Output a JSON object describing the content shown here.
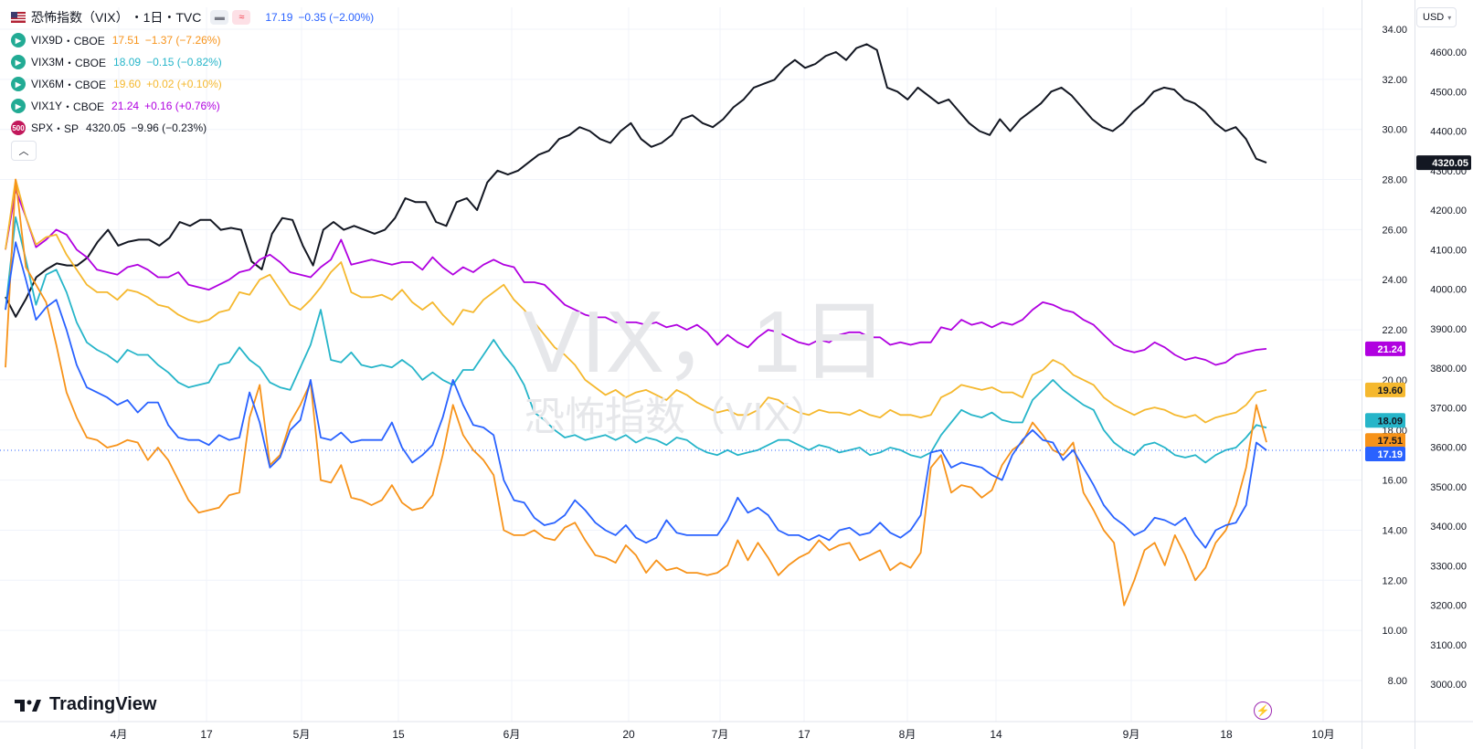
{
  "legend": {
    "main": {
      "title": "恐怖指数（VIX）",
      "interval": "・1日・TVC",
      "value": "17.19",
      "change": "−0.35 (−2.00%)",
      "color": "#2962ff"
    },
    "rows": [
      {
        "name": "VIX9D",
        "exchange": "・CBOE",
        "value": "17.51",
        "change": "−1.37 (−7.26%)",
        "color": "#f7931a",
        "icon": "play-icon"
      },
      {
        "name": "VIX3M",
        "exchange": "・CBOE",
        "value": "18.09",
        "change": "−0.15 (−0.82%)",
        "color": "#26b5c9",
        "icon": "play-icon"
      },
      {
        "name": "VIX6M",
        "exchange": "・CBOE",
        "value": "19.60",
        "change": "+0.02 (+0.10%)",
        "color": "#f5b82e",
        "icon": "play-icon"
      },
      {
        "name": "VIX1Y",
        "exchange": "・CBOE",
        "value": "21.24",
        "change": "+0.16 (+0.76%)",
        "color": "#b000e0",
        "icon": "play-icon"
      },
      {
        "name": "SPX",
        "exchange": "・SP",
        "value": "4320.05",
        "change": "−9.96 (−0.23%)",
        "color": "#131722",
        "icon": "500",
        "iconColor": "#c2185b"
      }
    ]
  },
  "currency": "USD",
  "watermark": {
    "big": "VIX，1日",
    "small": "恐怖指数（VIX）"
  },
  "brand": "TradingView",
  "chart_data": {
    "type": "line",
    "x_labels": [
      "4月",
      "17",
      "5月",
      "15",
      "6月",
      "20",
      "7月",
      "17",
      "8月",
      "14",
      "9月",
      "18",
      "10月"
    ],
    "left_axis": {
      "ticks": [
        "34.00",
        "32.00",
        "30.00",
        "28.00",
        "26.00",
        "24.00",
        "22.00",
        "20.00",
        "18.00",
        "16.00",
        "14.00",
        "12.00",
        "10.00",
        "8.00"
      ],
      "ylim": [
        8,
        34
      ]
    },
    "right_axis": {
      "ticks": [
        "4600.00",
        "4500.00",
        "4400.00",
        "4300.00",
        "4200.00",
        "4100.00",
        "4000.00",
        "3900.00",
        "3800.00",
        "3700.00",
        "3600.00",
        "3500.00",
        "3400.00",
        "3300.00",
        "3200.00",
        "3100.00",
        "3000.00"
      ],
      "ylim": [
        2975,
        4660
      ]
    },
    "series": [
      {
        "name": "VIX1Y",
        "axis": "left",
        "color": "#b000e0",
        "last_label": "21.24",
        "values": [
          25.2,
          27.6,
          26.5,
          25.3,
          25.6,
          26.0,
          25.8,
          25.2,
          24.9,
          24.4,
          24.3,
          24.2,
          24.5,
          24.6,
          24.4,
          24.1,
          24.1,
          24.3,
          23.8,
          23.7,
          23.6,
          23.8,
          24.0,
          24.3,
          24.4,
          24.8,
          25.0,
          24.7,
          24.3,
          24.2,
          24.1,
          24.5,
          24.8,
          25.6,
          24.6,
          24.7,
          24.8,
          24.7,
          24.6,
          24.7,
          24.7,
          24.4,
          24.9,
          24.5,
          24.2,
          24.5,
          24.3,
          24.6,
          24.8,
          24.6,
          24.5,
          23.9,
          23.9,
          23.8,
          23.4,
          23.0,
          22.8,
          22.6,
          22.5,
          22.5,
          22.3,
          22.3,
          22.3,
          22.2,
          22.3,
          22.1,
          22.2,
          22.0,
          22.2,
          21.9,
          21.4,
          21.8,
          21.5,
          21.3,
          21.7,
          22.0,
          21.9,
          21.7,
          21.5,
          21.4,
          21.6,
          21.5,
          21.8,
          21.9,
          21.9,
          21.7,
          21.7,
          21.4,
          21.5,
          21.4,
          21.5,
          21.5,
          22.1,
          22.0,
          22.4,
          22.2,
          22.3,
          22.1,
          22.3,
          22.2,
          22.4,
          22.8,
          23.1,
          23.0,
          22.8,
          22.7,
          22.4,
          22.2,
          21.8,
          21.4,
          21.2,
          21.1,
          21.2,
          21.5,
          21.3,
          21.0,
          20.8,
          20.9,
          20.8,
          20.6,
          20.7,
          21.0,
          21.1,
          21.2,
          21.24
        ]
      },
      {
        "name": "VIX6M",
        "axis": "left",
        "color": "#f5b82e",
        "last_label": "19.60",
        "values": [
          25.2,
          28.0,
          26.5,
          25.4,
          25.7,
          25.8,
          25.0,
          24.4,
          23.8,
          23.5,
          23.5,
          23.2,
          23.6,
          23.5,
          23.3,
          23.0,
          22.9,
          22.6,
          22.4,
          22.3,
          22.4,
          22.7,
          22.8,
          23.5,
          23.4,
          24.0,
          24.2,
          23.6,
          23.0,
          22.8,
          23.2,
          23.7,
          24.3,
          24.7,
          23.5,
          23.3,
          23.3,
          23.4,
          23.2,
          23.6,
          23.1,
          22.8,
          23.1,
          22.6,
          22.2,
          22.8,
          22.7,
          23.2,
          23.5,
          23.8,
          23.2,
          22.8,
          22.3,
          21.8,
          21.3,
          21.0,
          20.6,
          20.0,
          19.7,
          19.4,
          19.6,
          19.3,
          19.5,
          19.6,
          19.4,
          19.2,
          19.6,
          19.4,
          19.1,
          18.9,
          18.7,
          18.8,
          18.6,
          18.6,
          18.8,
          19.3,
          19.2,
          18.9,
          18.7,
          18.6,
          18.8,
          18.7,
          18.7,
          18.6,
          18.8,
          18.6,
          18.5,
          18.8,
          18.6,
          18.6,
          18.5,
          18.6,
          19.3,
          19.5,
          19.8,
          19.7,
          19.6,
          19.7,
          19.5,
          19.5,
          19.3,
          20.2,
          20.4,
          20.8,
          20.6,
          20.2,
          20.0,
          19.8,
          19.3,
          19.0,
          18.8,
          18.6,
          18.8,
          18.9,
          18.8,
          18.6,
          18.5,
          18.6,
          18.3,
          18.5,
          18.6,
          18.7,
          19.0,
          19.5,
          19.6
        ]
      },
      {
        "name": "VIX3M",
        "axis": "left",
        "color": "#26b5c9",
        "last_label": "18.09",
        "values": [
          22.8,
          26.5,
          24.8,
          23.0,
          24.2,
          24.4,
          23.5,
          22.3,
          21.5,
          21.2,
          21.0,
          20.7,
          21.2,
          21.0,
          21.0,
          20.6,
          20.3,
          19.9,
          19.7,
          19.8,
          19.9,
          20.6,
          20.7,
          21.3,
          20.8,
          20.5,
          19.9,
          19.7,
          19.6,
          20.5,
          21.4,
          22.8,
          20.8,
          20.7,
          21.1,
          20.6,
          20.5,
          20.6,
          20.5,
          20.8,
          20.5,
          20.0,
          20.3,
          20.0,
          19.8,
          20.4,
          20.4,
          21.0,
          21.6,
          21.0,
          20.5,
          19.8,
          18.7,
          18.4,
          18.0,
          17.7,
          17.8,
          17.6,
          17.7,
          17.8,
          17.6,
          17.8,
          17.5,
          17.7,
          17.6,
          17.4,
          17.7,
          17.6,
          17.3,
          17.1,
          17.0,
          17.2,
          17.0,
          17.1,
          17.2,
          17.4,
          17.6,
          17.6,
          17.4,
          17.2,
          17.4,
          17.3,
          17.1,
          17.2,
          17.3,
          17.0,
          17.1,
          17.3,
          17.2,
          17.0,
          16.9,
          17.1,
          17.8,
          18.3,
          18.8,
          18.6,
          18.5,
          18.7,
          18.4,
          18.3,
          18.3,
          19.2,
          19.6,
          20.0,
          19.6,
          19.3,
          19.0,
          18.8,
          18.0,
          17.5,
          17.2,
          17.0,
          17.4,
          17.5,
          17.3,
          17.0,
          16.9,
          17.0,
          16.7,
          17.0,
          17.2,
          17.3,
          17.7,
          18.2,
          18.09
        ]
      },
      {
        "name": "VIX",
        "axis": "left",
        "color": "#2962ff",
        "last_label": "17.19",
        "values": [
          22.8,
          25.5,
          24.0,
          22.4,
          22.9,
          23.2,
          22.0,
          20.6,
          19.7,
          19.5,
          19.3,
          19.0,
          19.2,
          18.7,
          19.1,
          19.1,
          18.2,
          17.7,
          17.6,
          17.6,
          17.4,
          17.8,
          17.6,
          17.7,
          19.5,
          18.3,
          16.5,
          16.9,
          18.0,
          18.4,
          20.0,
          17.7,
          17.6,
          17.9,
          17.5,
          17.6,
          17.6,
          17.6,
          18.3,
          17.3,
          16.7,
          17.0,
          17.4,
          18.5,
          20.0,
          19.0,
          18.2,
          18.1,
          17.8,
          16.0,
          15.2,
          15.1,
          14.5,
          14.2,
          14.3,
          14.6,
          15.2,
          14.8,
          14.3,
          14.0,
          13.8,
          14.2,
          13.7,
          13.5,
          13.7,
          14.4,
          13.9,
          13.8,
          13.8,
          13.8,
          13.8,
          14.4,
          15.3,
          14.7,
          14.9,
          14.6,
          14.0,
          13.8,
          13.8,
          13.6,
          13.8,
          13.6,
          14.0,
          14.1,
          13.8,
          13.9,
          14.3,
          13.9,
          13.7,
          14.0,
          14.6,
          17.1,
          17.2,
          16.5,
          16.7,
          16.6,
          16.5,
          16.2,
          16.0,
          17.0,
          17.6,
          18.0,
          17.6,
          17.5,
          16.8,
          17.2,
          16.5,
          15.8,
          15.0,
          14.5,
          14.2,
          13.8,
          14.0,
          14.5,
          14.4,
          14.2,
          14.5,
          13.8,
          13.3,
          14.0,
          14.2,
          14.3,
          15.0,
          17.5,
          17.19
        ]
      },
      {
        "name": "VIX9D",
        "axis": "left",
        "color": "#f7931a",
        "last_label": "17.51",
        "values": [
          20.5,
          28.0,
          24.5,
          23.8,
          23.1,
          21.4,
          19.5,
          18.5,
          17.7,
          17.6,
          17.3,
          17.4,
          17.6,
          17.5,
          16.8,
          17.3,
          16.8,
          16.0,
          15.2,
          14.7,
          14.8,
          14.9,
          15.4,
          15.5,
          18.5,
          19.8,
          16.6,
          17.0,
          18.3,
          19.0,
          19.9,
          16.0,
          15.9,
          16.6,
          15.3,
          15.2,
          15.0,
          15.2,
          15.8,
          15.1,
          14.8,
          14.9,
          15.4,
          17.0,
          19.0,
          17.8,
          17.2,
          16.8,
          16.2,
          14.0,
          13.8,
          13.8,
          14.0,
          13.7,
          13.6,
          14.1,
          14.3,
          13.6,
          13.0,
          12.9,
          12.7,
          13.4,
          13.0,
          12.3,
          12.8,
          12.4,
          12.5,
          12.3,
          12.3,
          12.2,
          12.3,
          12.6,
          13.6,
          12.8,
          13.5,
          12.9,
          12.2,
          12.6,
          12.9,
          13.1,
          13.6,
          13.2,
          13.4,
          13.5,
          12.8,
          13.0,
          13.2,
          12.4,
          12.7,
          12.5,
          13.1,
          16.5,
          17.0,
          15.5,
          15.8,
          15.7,
          15.3,
          15.6,
          16.6,
          17.2,
          17.5,
          18.3,
          17.8,
          17.2,
          17.0,
          17.5,
          15.5,
          14.8,
          14.0,
          13.5,
          11.0,
          12.0,
          13.2,
          13.5,
          12.6,
          13.8,
          13.0,
          12.0,
          12.5,
          13.5,
          14.0,
          15.0,
          16.5,
          19.0,
          17.51
        ]
      },
      {
        "name": "SPX",
        "axis": "right",
        "color": "#131722",
        "last_label": "4320.05",
        "values": [
          3980,
          3930,
          3975,
          4030,
          4050,
          4065,
          4060,
          4060,
          4080,
          4120,
          4150,
          4110,
          4120,
          4125,
          4125,
          4110,
          4130,
          4170,
          4160,
          4175,
          4175,
          4150,
          4155,
          4150,
          4070,
          4050,
          4140,
          4180,
          4175,
          4110,
          4060,
          4150,
          4170,
          4150,
          4160,
          4150,
          4140,
          4150,
          4180,
          4230,
          4220,
          4220,
          4170,
          4160,
          4220,
          4230,
          4200,
          4270,
          4300,
          4290,
          4300,
          4320,
          4340,
          4350,
          4380,
          4390,
          4410,
          4400,
          4380,
          4370,
          4400,
          4420,
          4380,
          4360,
          4370,
          4390,
          4430,
          4440,
          4420,
          4410,
          4430,
          4460,
          4480,
          4510,
          4520,
          4530,
          4560,
          4580,
          4560,
          4570,
          4590,
          4600,
          4580,
          4610,
          4620,
          4605,
          4510,
          4500,
          4480,
          4510,
          4490,
          4470,
          4480,
          4450,
          4420,
          4400,
          4390,
          4430,
          4400,
          4430,
          4450,
          4470,
          4500,
          4510,
          4490,
          4460,
          4430,
          4410,
          4400,
          4420,
          4450,
          4470,
          4500,
          4510,
          4505,
          4480,
          4470,
          4450,
          4420,
          4400,
          4410,
          4380,
          4330,
          4320.05
        ]
      }
    ]
  }
}
